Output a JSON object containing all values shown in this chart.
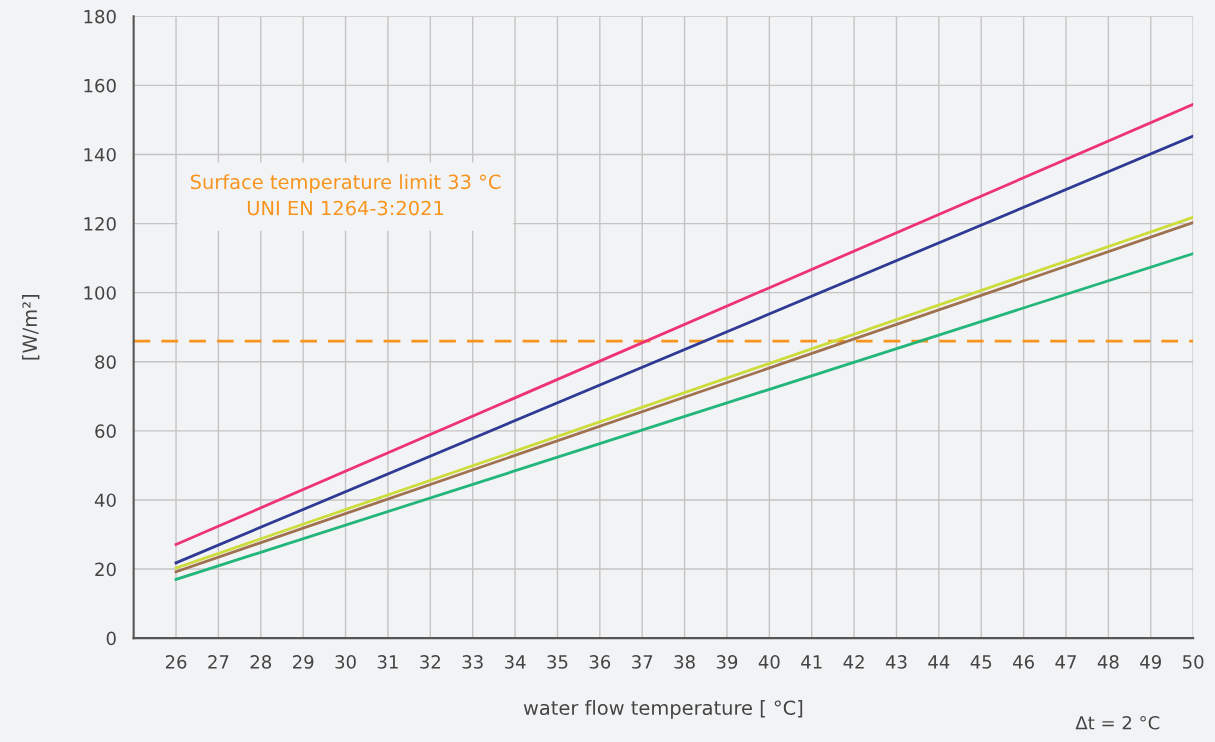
{
  "chart_data": {
    "type": "line",
    "xlabel": "water flow temperature [ °C]",
    "ylabel": "[W/m²]",
    "xlim": [
      25,
      50
    ],
    "xticks": [
      26,
      27,
      28,
      29,
      30,
      31,
      32,
      33,
      34,
      35,
      36,
      37,
      38,
      39,
      40,
      41,
      42,
      43,
      44,
      45,
      46,
      47,
      48,
      49,
      50
    ],
    "ylim": [
      0,
      180
    ],
    "yticks": [
      0,
      20,
      40,
      60,
      80,
      100,
      120,
      140,
      160,
      180
    ],
    "grid": true,
    "legend": false,
    "marker": "none",
    "line_style": "solid",
    "x": [
      26,
      50
    ],
    "series": [
      {
        "color": "#ee3277",
        "values": [
          27.1,
          154.5
        ]
      },
      {
        "color": "#2e3a94",
        "values": [
          21.8,
          145.3
        ]
      },
      {
        "color": "#cddc3a",
        "values": [
          20.3,
          121.8
        ]
      },
      {
        "color": "#a0714f",
        "values": [
          19.2,
          120.3
        ]
      },
      {
        "color": "#23b67a",
        "values": [
          17.0,
          111.3
        ]
      }
    ],
    "ref_lines": [
      {
        "axis": "y",
        "value": 86,
        "color": "#f7941d",
        "line_style": "dashed"
      }
    ],
    "annotations": [
      "Surface temperature limit 33 °C\nUNI EN 1264-3:2021",
      "Δt = 2 °C"
    ]
  }
}
